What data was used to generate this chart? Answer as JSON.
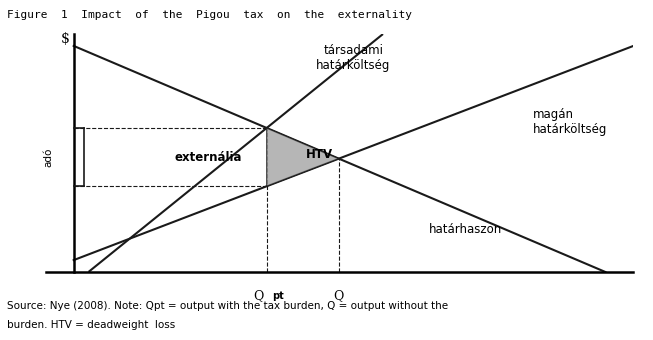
{
  "title": "Figure  1  Impact  of  the  Pigou  tax  on  the  externality",
  "xlabel_qpt": "Q",
  "xlabel_qpt_sub": "pt",
  "xlabel_q": "Q",
  "ylabel": "$",
  "ado_label": "adó",
  "label_tarsadami": "társadami\nhatárköltség",
  "label_magan": "magán\nhatárköltség",
  "label_hataraszon": "határhaszon",
  "label_externalia": "externália",
  "label_htv": "HTV",
  "source_line1": "Source: Nye (2008). Note: Qpt = output with the tax burden, Q = output without the",
  "source_line2": "burden. HTV = deadweight  loss",
  "background_color": "#ffffff",
  "line_color": "#1a1a1a",
  "fill_color": "#aaaaaa",
  "xlim": [
    0,
    10
  ],
  "ylim": [
    0,
    10
  ]
}
